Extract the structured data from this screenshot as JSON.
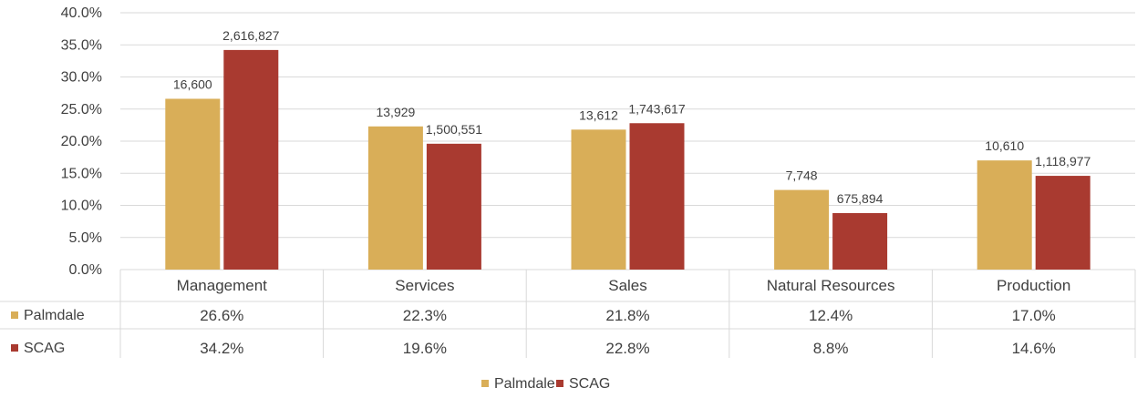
{
  "chart_data": {
    "type": "bar",
    "categories": [
      "Management",
      "Services",
      "Sales",
      "Natural Resources",
      "Production"
    ],
    "series": [
      {
        "name": "Palmdale",
        "color": "#D9AE58",
        "values": [
          26.6,
          22.3,
          21.8,
          12.4,
          17.0
        ],
        "value_labels": [
          "26.6%",
          "22.3%",
          "21.8%",
          "12.4%",
          "17.0%"
        ],
        "data_labels": [
          "16,600",
          "13,929",
          "13,612",
          "7,748",
          "10,610"
        ]
      },
      {
        "name": "SCAG",
        "color": "#A93A30",
        "values": [
          34.2,
          19.6,
          22.8,
          8.8,
          14.6
        ],
        "value_labels": [
          "34.2%",
          "19.6%",
          "22.8%",
          "8.8%",
          "14.6%"
        ],
        "data_labels": [
          "2,616,827",
          "1,500,551",
          "1,743,617",
          "675,894",
          "1,118,977"
        ]
      }
    ],
    "y_ticks": [
      "0.0%",
      "5.0%",
      "10.0%",
      "15.0%",
      "20.0%",
      "25.0%",
      "30.0%",
      "35.0%",
      "40.0%"
    ],
    "ylim": [
      0,
      40
    ],
    "grid": true,
    "legend_position": "bottom-center",
    "data_table": true
  }
}
